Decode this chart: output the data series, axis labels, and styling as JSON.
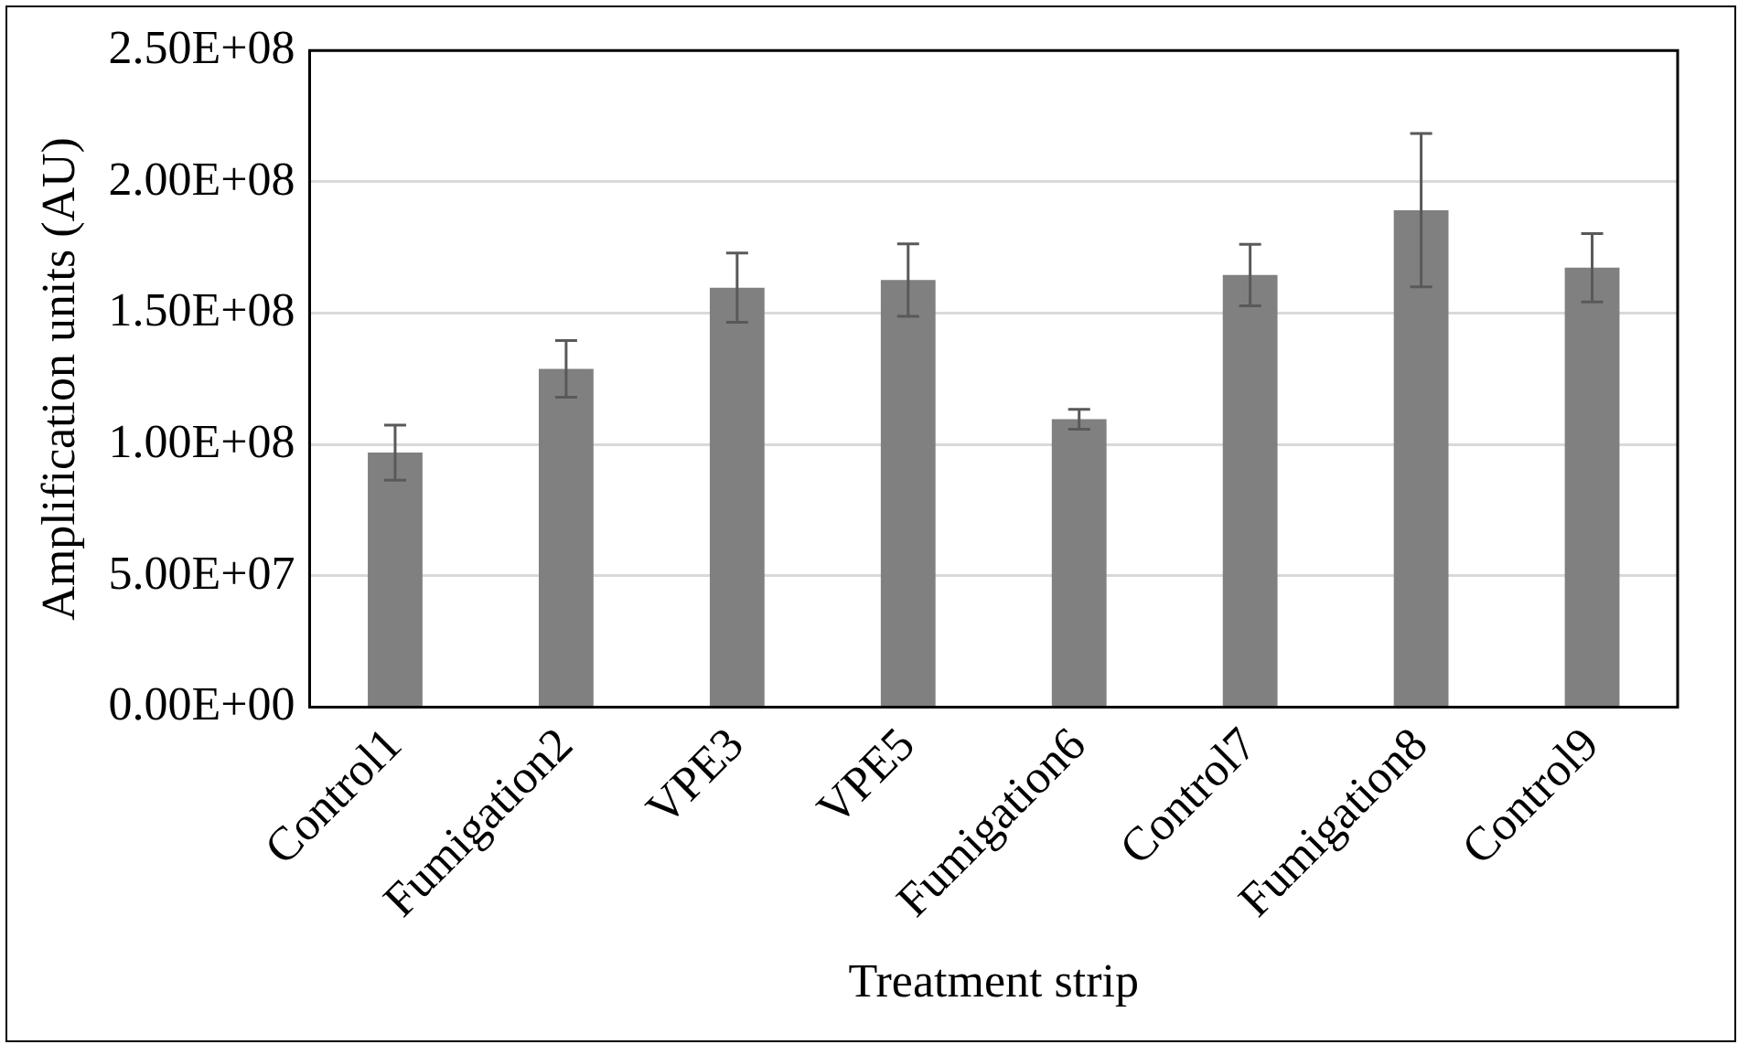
{
  "chart_data": {
    "type": "bar",
    "xlabel": "Treatment strip",
    "ylabel": "Amplification units (AU)",
    "categories": [
      "Control1",
      "Fumigation2",
      "VPE3",
      "VPE5",
      "Fumigation6",
      "Control7",
      "Fumigation8",
      "Control9"
    ],
    "values": [
      96900000,
      128800000,
      159700000,
      162600000,
      109600000,
      164500000,
      189200000,
      167300000
    ],
    "errors": [
      10500000,
      10800000,
      13200000,
      13800000,
      3800000,
      11700000,
      29200000,
      13000000
    ],
    "color": "#808080",
    "ylim": [
      0,
      250000000
    ],
    "yticks": [
      {
        "value": 0,
        "label": "0.00E+00"
      },
      {
        "value": 50000000,
        "label": "5.00E+07"
      },
      {
        "value": 100000000,
        "label": "1.00E+08"
      },
      {
        "value": 150000000,
        "label": "1.50E+08"
      },
      {
        "value": 200000000,
        "label": "2.00E+08"
      },
      {
        "value": 250000000,
        "label": "2.50E+08"
      }
    ],
    "grid": "y",
    "legend": false
  }
}
